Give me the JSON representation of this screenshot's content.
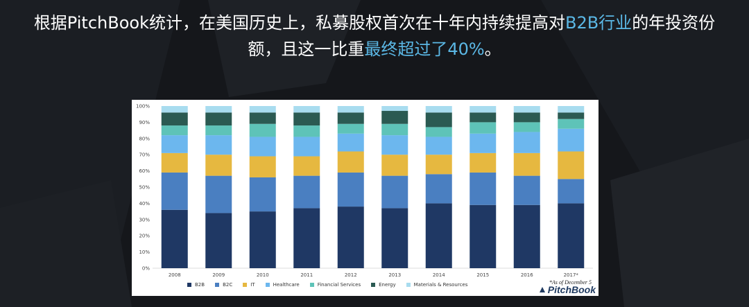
{
  "headline": {
    "part1": "根据PitchBook统计，在美国历史上，私募股权首次在十年内持续提高对",
    "highlight1": "B2B行业",
    "part2": "的年投资份",
    "part3": "额，且这一比重",
    "highlight2": "最终超过了40%",
    "part4": "。"
  },
  "colors": {
    "background": "#15171b",
    "highlight": "#5bb8e6",
    "B2B": "#1f3864",
    "B2C": "#4a7fc1",
    "IT": "#e6b840",
    "Healthcare": "#6cb7ee",
    "Financial Services": "#5ec3b8",
    "Energy": "#2b5a52",
    "Materials & Resources": "#a8dcef"
  },
  "note": "*As of December 5",
  "brand": "PitchBook",
  "chart_data": {
    "type": "bar",
    "stacked": true,
    "percent": true,
    "categories": [
      "2008",
      "2009",
      "2010",
      "2011",
      "2012",
      "2013",
      "2014",
      "2015",
      "2016",
      "2017*"
    ],
    "ylim": [
      0,
      100
    ],
    "yticks": [
      "0%",
      "10%",
      "20%",
      "30%",
      "40%",
      "50%",
      "60%",
      "70%",
      "80%",
      "90%",
      "100%"
    ],
    "legend_position": "bottom",
    "grid": false,
    "series": [
      {
        "name": "B2B",
        "values": [
          36,
          34,
          35,
          37,
          38,
          37,
          40,
          39,
          39,
          40
        ]
      },
      {
        "name": "B2C",
        "values": [
          23,
          23,
          21,
          20,
          21,
          20,
          18,
          20,
          18,
          15
        ]
      },
      {
        "name": "IT",
        "values": [
          12,
          13,
          13,
          12,
          13,
          13,
          12,
          12,
          14,
          17
        ]
      },
      {
        "name": "Healthcare",
        "values": [
          11,
          12,
          12,
          12,
          11,
          12,
          11,
          12,
          13,
          14
        ]
      },
      {
        "name": "Financial Services",
        "values": [
          6,
          6,
          8,
          7,
          6,
          7,
          6,
          7,
          6,
          6
        ]
      },
      {
        "name": "Energy",
        "values": [
          8,
          8,
          7,
          8,
          7,
          8,
          9,
          6,
          6,
          4
        ]
      },
      {
        "name": "Materials & Resources",
        "values": [
          4,
          4,
          4,
          4,
          4,
          3,
          4,
          4,
          4,
          4
        ]
      }
    ]
  }
}
